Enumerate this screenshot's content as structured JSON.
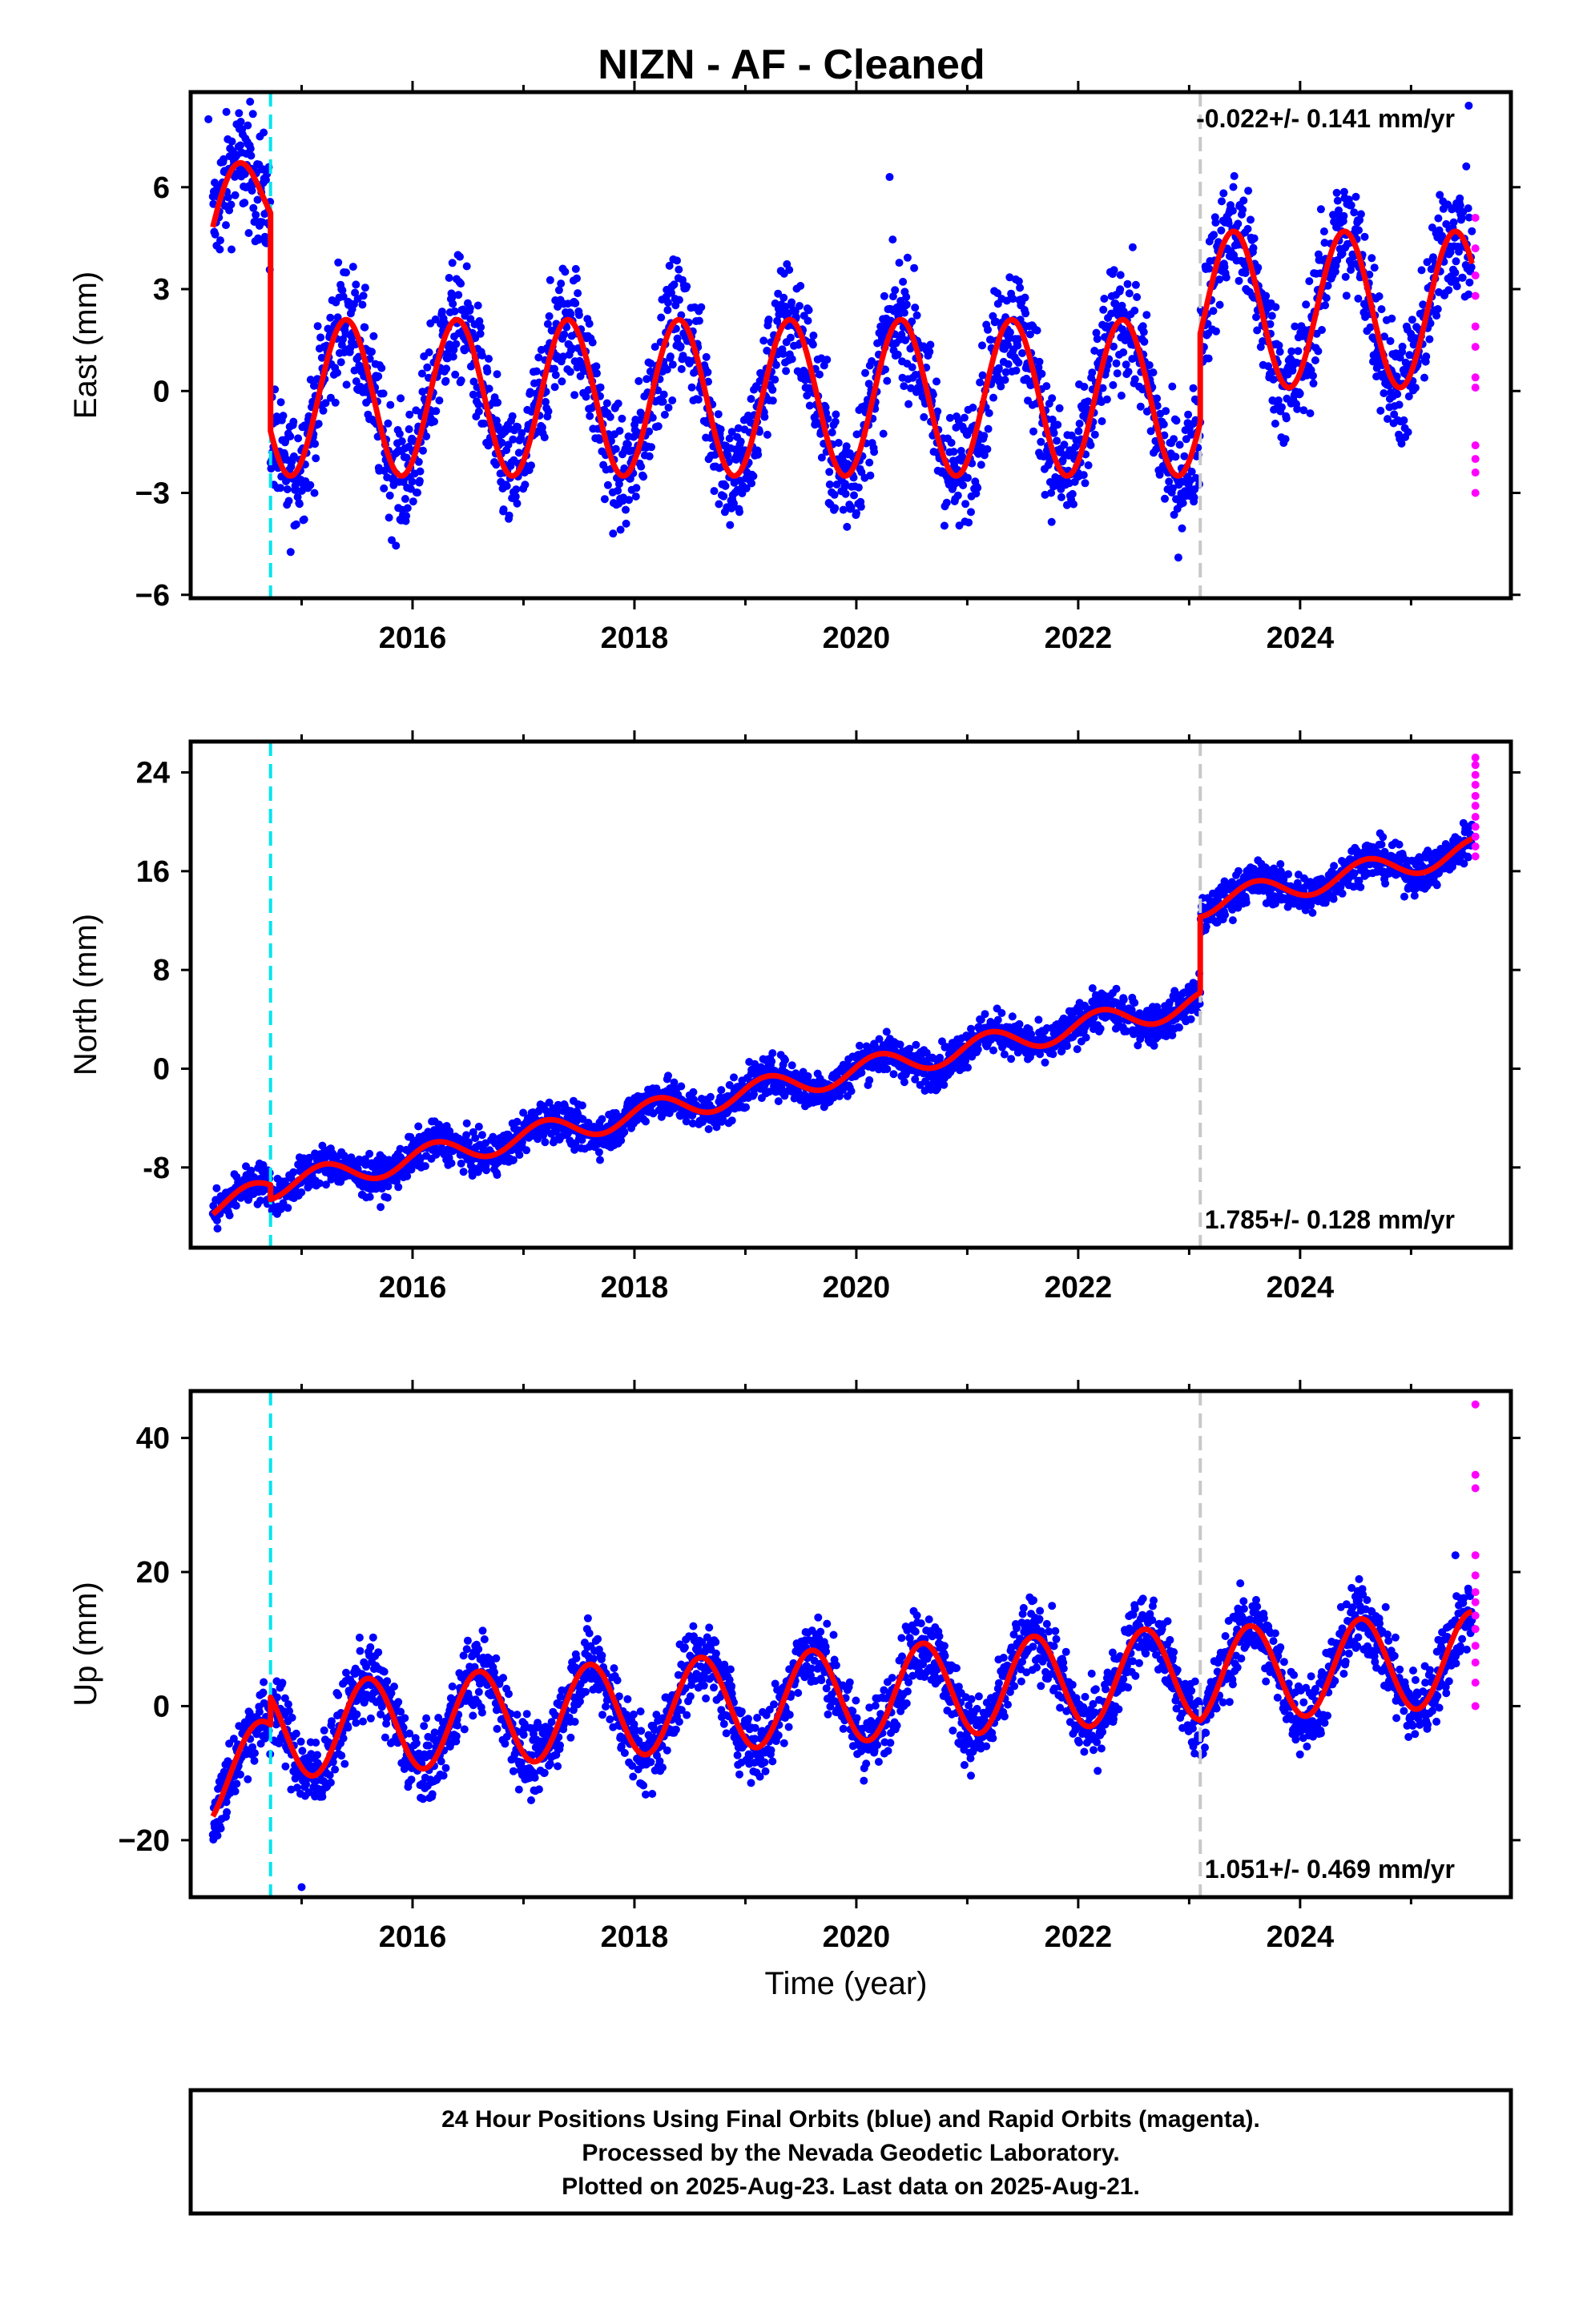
{
  "title": "NIZN  - AF - Cleaned",
  "colors": {
    "final": "#0000ff",
    "rapid": "#ff00ff",
    "model": "#ff0000",
    "step_equipment": "#00e5ee",
    "step_earthquake": "#c8c8c8",
    "frame": "#000000"
  },
  "xlabel": "Time (year)",
  "caption": [
    "24 Hour Positions Using Final Orbits (blue) and Rapid Orbits (magenta).",
    "Processed by the Nevada Geodetic Laboratory.",
    "Plotted on 2025-Aug-23. Last data on 2025-Aug-21."
  ],
  "chart_data": [
    {
      "type": "scatter",
      "component": "East",
      "ylabel": "East (mm)",
      "rate_label": "-0.022+/- 0.141 mm/yr",
      "rate_position": "top-right",
      "xlim": [
        2014.0,
        2025.9
      ],
      "ylim": [
        -6.1,
        8.8
      ],
      "yticks": [
        -6,
        -3,
        0,
        3,
        6
      ],
      "ytick_labels": [
        "−6",
        "−3",
        "0",
        "3",
        "6"
      ],
      "xticks": [
        2016,
        2018,
        2020,
        2022,
        2024
      ],
      "steps": [
        {
          "x": 2014.72,
          "kind": "equipment"
        },
        {
          "x": 2023.1,
          "kind": "earthquake"
        }
      ],
      "model": {
        "segments": [
          {
            "x0": 2014.2,
            "x1": 2014.72,
            "offset": 4.3,
            "rate": 3.2,
            "amp": 1.7,
            "peak": 2014.4
          },
          {
            "x0": 2014.72,
            "x1": 2023.1,
            "offset": -0.2,
            "rate": 0.0,
            "amp": 2.3,
            "peak": 2015.4
          },
          {
            "x0": 2023.1,
            "x1": 2025.55,
            "offset": 2.4,
            "rate": 0.0,
            "amp": 2.3,
            "peak": 2023.4
          }
        ]
      },
      "residual_sd": 0.9,
      "rapid": [
        [
          2025.58,
          5.1
        ],
        [
          2025.58,
          4.2
        ],
        [
          2025.58,
          3.4
        ],
        [
          2025.58,
          2.8
        ],
        [
          2025.58,
          1.9
        ],
        [
          2025.58,
          1.3
        ],
        [
          2025.58,
          0.4
        ],
        [
          2025.58,
          0.1
        ],
        [
          2025.58,
          -1.6
        ],
        [
          2025.58,
          -2.0
        ],
        [
          2025.58,
          -2.4
        ],
        [
          2025.58,
          -3.0
        ]
      ],
      "outliers": [
        [
          2014.16,
          8.0
        ],
        [
          2020.3,
          6.3
        ],
        [
          2025.52,
          8.4
        ]
      ]
    },
    {
      "type": "scatter",
      "component": "North",
      "ylabel": "North (mm)",
      "rate_label": "1.785+/- 0.128 mm/yr",
      "rate_position": "bottom-right",
      "xlim": [
        2014.0,
        2025.9
      ],
      "ylim": [
        -14.5,
        26.5
      ],
      "yticks": [
        -8,
        0,
        8,
        16,
        24
      ],
      "ytick_labels": [
        "-8",
        "0",
        "8",
        "16",
        "24"
      ],
      "xticks": [
        2016,
        2018,
        2020,
        2022,
        2024
      ],
      "steps": [
        {
          "x": 2014.72,
          "kind": "equipment"
        },
        {
          "x": 2023.1,
          "kind": "earthquake"
        }
      ],
      "model": {
        "segments": [
          {
            "x0": 2014.2,
            "x1": 2014.72,
            "offset": -11.2,
            "rate": 2.5,
            "amp": 1.0,
            "peak": 2014.55
          },
          {
            "x0": 2014.72,
            "x1": 2023.1,
            "offset": -9.6,
            "rate": 1.785,
            "amp": 1.0,
            "peak": 2015.2
          },
          {
            "x0": 2023.1,
            "x1": 2025.55,
            "offset": 13.3,
            "rate": 1.785,
            "amp": 1.0,
            "peak": 2023.6
          }
        ]
      },
      "residual_sd": 0.8,
      "rapid": [
        [
          2025.58,
          25.2
        ],
        [
          2025.58,
          24.6
        ],
        [
          2025.58,
          23.8
        ],
        [
          2025.58,
          23.0
        ],
        [
          2025.58,
          22.1
        ],
        [
          2025.58,
          21.3
        ],
        [
          2025.58,
          20.4
        ],
        [
          2025.58,
          19.6
        ],
        [
          2025.58,
          18.8
        ],
        [
          2025.58,
          18.0
        ],
        [
          2025.58,
          17.2
        ]
      ],
      "outliers": []
    },
    {
      "type": "scatter",
      "component": "Up",
      "ylabel": "Up (mm)",
      "rate_label": "1.051+/- 0.469 mm/yr",
      "rate_position": "bottom-right",
      "xlim": [
        2014.0,
        2025.9
      ],
      "ylim": [
        -28.5,
        47.0
      ],
      "yticks": [
        -20,
        0,
        20,
        40
      ],
      "ytick_labels": [
        "−20",
        "0",
        "20",
        "40"
      ],
      "xticks": [
        2016,
        2018,
        2020,
        2022,
        2024
      ],
      "steps": [
        {
          "x": 2014.72,
          "kind": "equipment"
        },
        {
          "x": 2023.1,
          "kind": "earthquake"
        }
      ],
      "model": {
        "segments": [
          {
            "x0": 2014.2,
            "x1": 2014.72,
            "offset": -12.0,
            "rate": 10.0,
            "amp": 5.5,
            "peak": 2014.6
          },
          {
            "x0": 2014.72,
            "x1": 2023.1,
            "offset": -3.8,
            "rate": 1.05,
            "amp": 7.0,
            "peak": 2015.6
          },
          {
            "x0": 2023.1,
            "x1": 2025.55,
            "offset": 4.5,
            "rate": 1.05,
            "amp": 7.0,
            "peak": 2023.55
          }
        ]
      },
      "residual_sd": 2.8,
      "rapid": [
        [
          2025.58,
          45.0
        ],
        [
          2025.58,
          34.5
        ],
        [
          2025.58,
          32.5
        ],
        [
          2025.58,
          22.5
        ],
        [
          2025.58,
          19.5
        ],
        [
          2025.58,
          17.0
        ],
        [
          2025.58,
          15.5
        ],
        [
          2025.58,
          13.5
        ],
        [
          2025.58,
          11.5
        ],
        [
          2025.58,
          9.0
        ],
        [
          2025.58,
          6.5
        ],
        [
          2025.58,
          3.5
        ],
        [
          2025.58,
          0.0
        ]
      ],
      "outliers": [
        [
          2015.0,
          -27.0
        ],
        [
          2025.4,
          22.5
        ]
      ]
    }
  ]
}
